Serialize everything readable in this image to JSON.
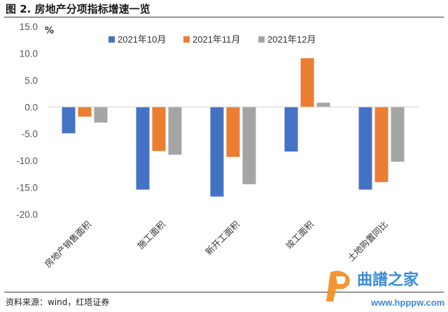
{
  "figure": {
    "title": "图 2. 房地产分项指标增速一览",
    "source": "资料来源：wind，红塔证券"
  },
  "chart_data": {
    "type": "bar",
    "unit_label": "%",
    "categories": [
      "房地产销售面积",
      "施工面积",
      "新开工面积",
      "竣工面积",
      "土地购置同比"
    ],
    "series": [
      {
        "name": "2021年10月",
        "color": "#4472C4",
        "values": [
          -4.9,
          -15.4,
          -16.7,
          -8.3,
          -15.4
        ]
      },
      {
        "name": "2021年11月",
        "color": "#ED7D31",
        "values": [
          -1.8,
          -8.2,
          -9.3,
          9.1,
          -14.0
        ]
      },
      {
        "name": "2021年12月",
        "color": "#A5A5A5",
        "values": [
          -2.9,
          -8.9,
          -14.4,
          0.8,
          -10.2
        ]
      }
    ],
    "ylim": [
      -20,
      15
    ],
    "yticks": [
      15,
      10,
      5,
      0,
      -5,
      -10,
      -15,
      -20
    ],
    "ytick_labels": [
      "15.0",
      "10.0",
      "5.0",
      "0.0",
      "-5.0",
      "-10.0",
      "-15.0",
      "-20.0"
    ],
    "legend_position": "top-center",
    "grid": false
  },
  "watermark": {
    "text": "曲譜之家",
    "url": "www.hpppw.com"
  }
}
